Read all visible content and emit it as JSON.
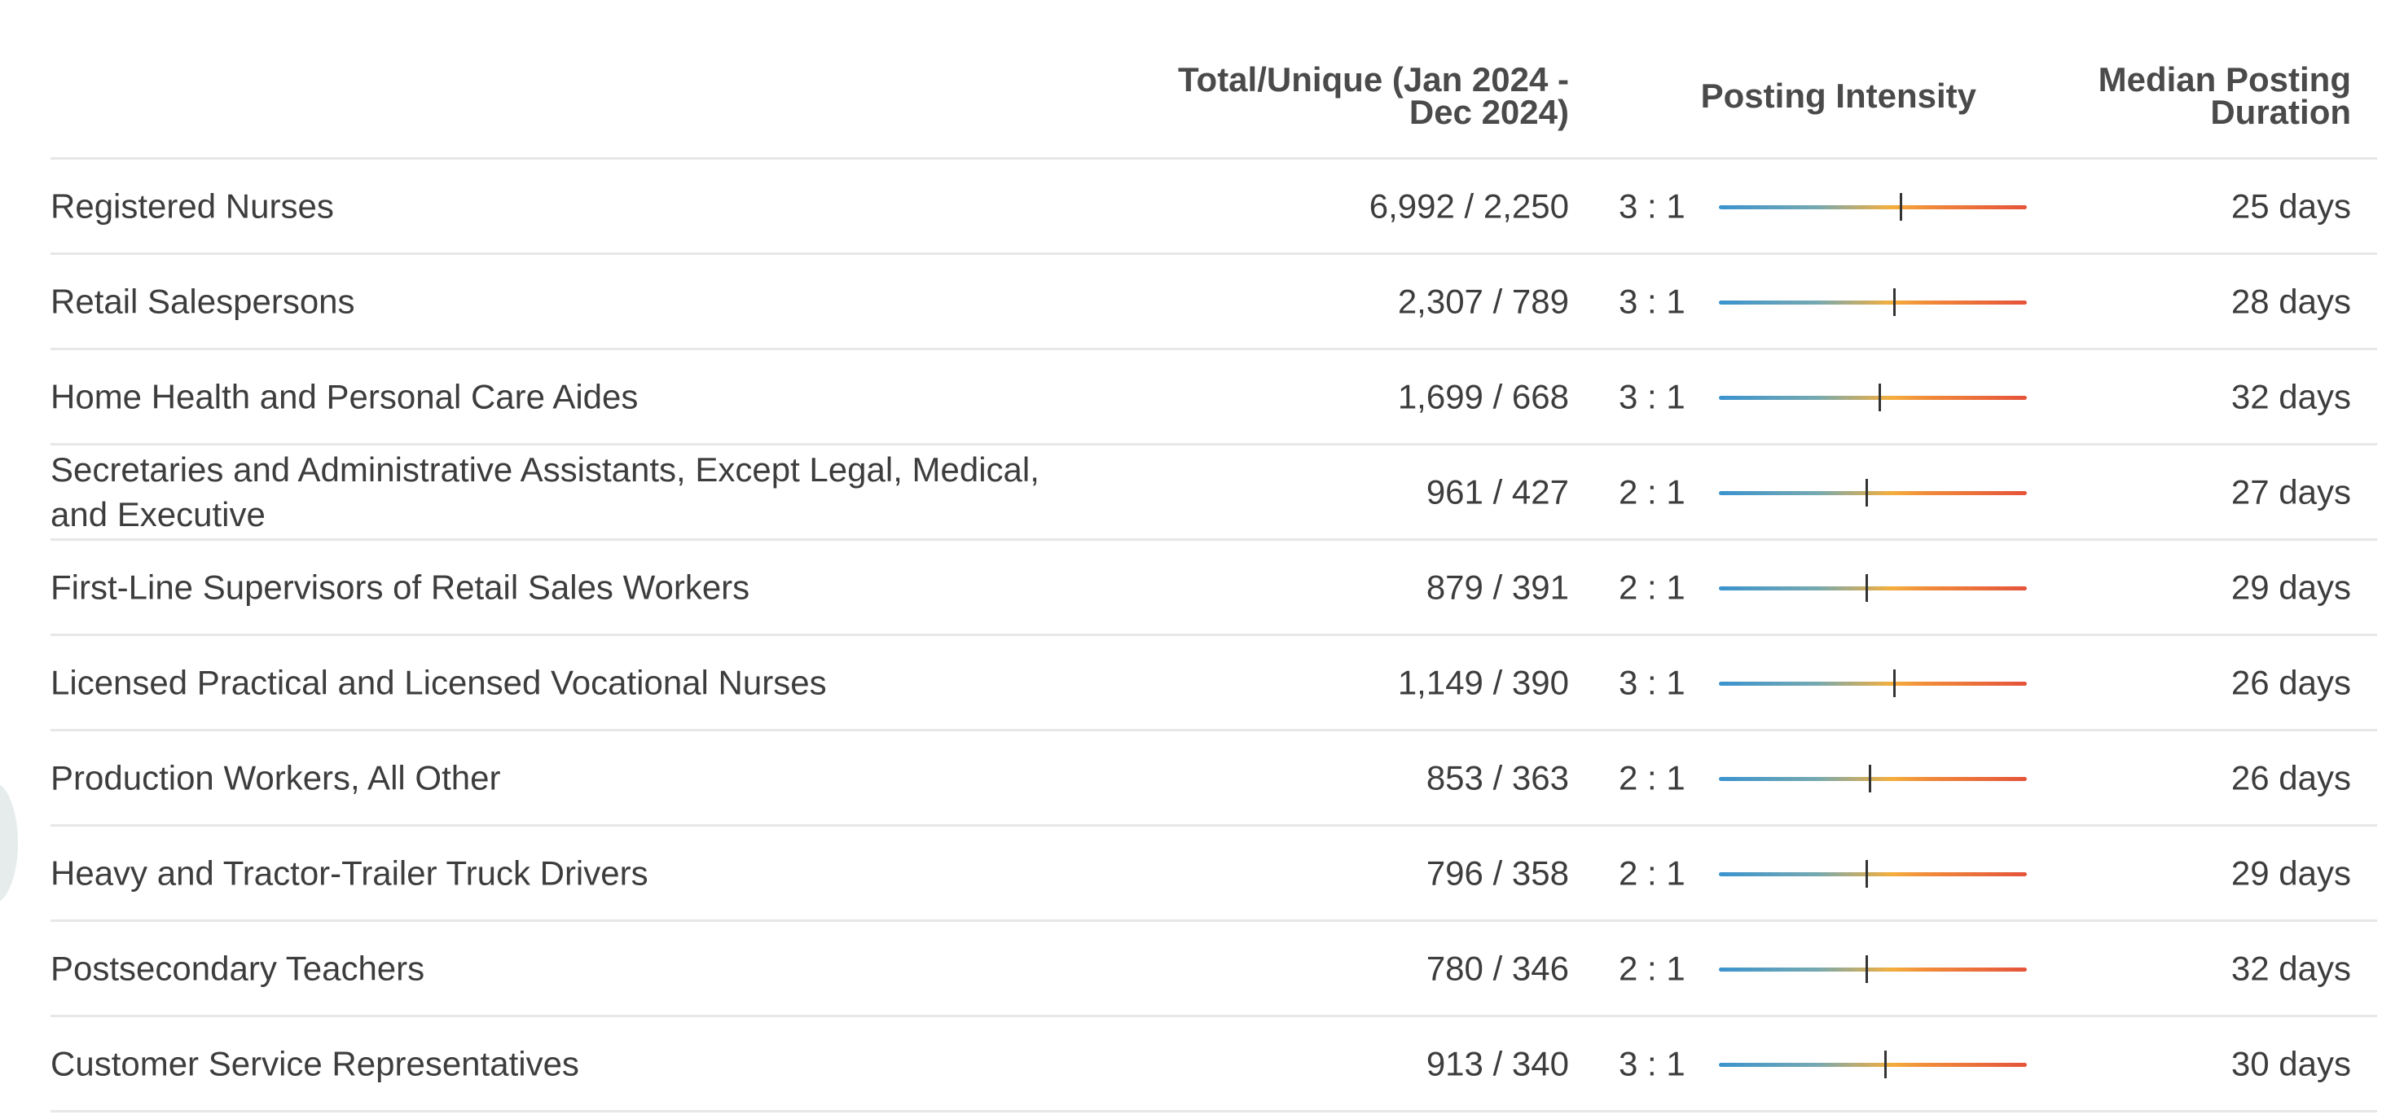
{
  "headers": {
    "total_unique": "Total/Unique (Jan 2024 - Dec 2024)",
    "posting_intensity": "Posting Intensity",
    "median_duration": "Median Posting Duration"
  },
  "colors": {
    "intensity_low": "#3a93cf",
    "intensity_mid": "#f4ae3d",
    "intensity_high": "#e5533a",
    "divider": "#e7e7e7",
    "marker": "#333333"
  },
  "rows": [
    {
      "occupation": "Registered Nurses",
      "total_unique": "6,992 / 2,250",
      "intensity": "3 : 1",
      "intensity_level": 0.59,
      "duration": "25 days"
    },
    {
      "occupation": "Retail Salespersons",
      "total_unique": "2,307 / 789",
      "intensity": "3 : 1",
      "intensity_level": 0.57,
      "duration": "28 days"
    },
    {
      "occupation": "Home Health and Personal Care Aides",
      "total_unique": "1,699 / 668",
      "intensity": "3 : 1",
      "intensity_level": 0.52,
      "duration": "32 days"
    },
    {
      "occupation": "Secretaries and Administrative Assistants, Except Legal, Medical, and Executive",
      "total_unique": "961 / 427",
      "intensity": "2 : 1",
      "intensity_level": 0.48,
      "duration": "27 days"
    },
    {
      "occupation": "First-Line Supervisors of Retail Sales Workers",
      "total_unique": "879 / 391",
      "intensity": "2 : 1",
      "intensity_level": 0.48,
      "duration": "29 days"
    },
    {
      "occupation": "Licensed Practical and Licensed Vocational Nurses",
      "total_unique": "1,149 / 390",
      "intensity": "3 : 1",
      "intensity_level": 0.57,
      "duration": "26 days"
    },
    {
      "occupation": "Production Workers, All Other",
      "total_unique": "853 / 363",
      "intensity": "2 : 1",
      "intensity_level": 0.49,
      "duration": "26 days"
    },
    {
      "occupation": "Heavy and Tractor-Trailer Truck Drivers",
      "total_unique": "796 / 358",
      "intensity": "2 : 1",
      "intensity_level": 0.48,
      "duration": "29 days"
    },
    {
      "occupation": "Postsecondary Teachers",
      "total_unique": "780 / 346",
      "intensity": "2 : 1",
      "intensity_level": 0.48,
      "duration": "32 days"
    },
    {
      "occupation": "Customer Service Representatives",
      "total_unique": "913 / 340",
      "intensity": "3 : 1",
      "intensity_level": 0.54,
      "duration": "30 days"
    }
  ]
}
